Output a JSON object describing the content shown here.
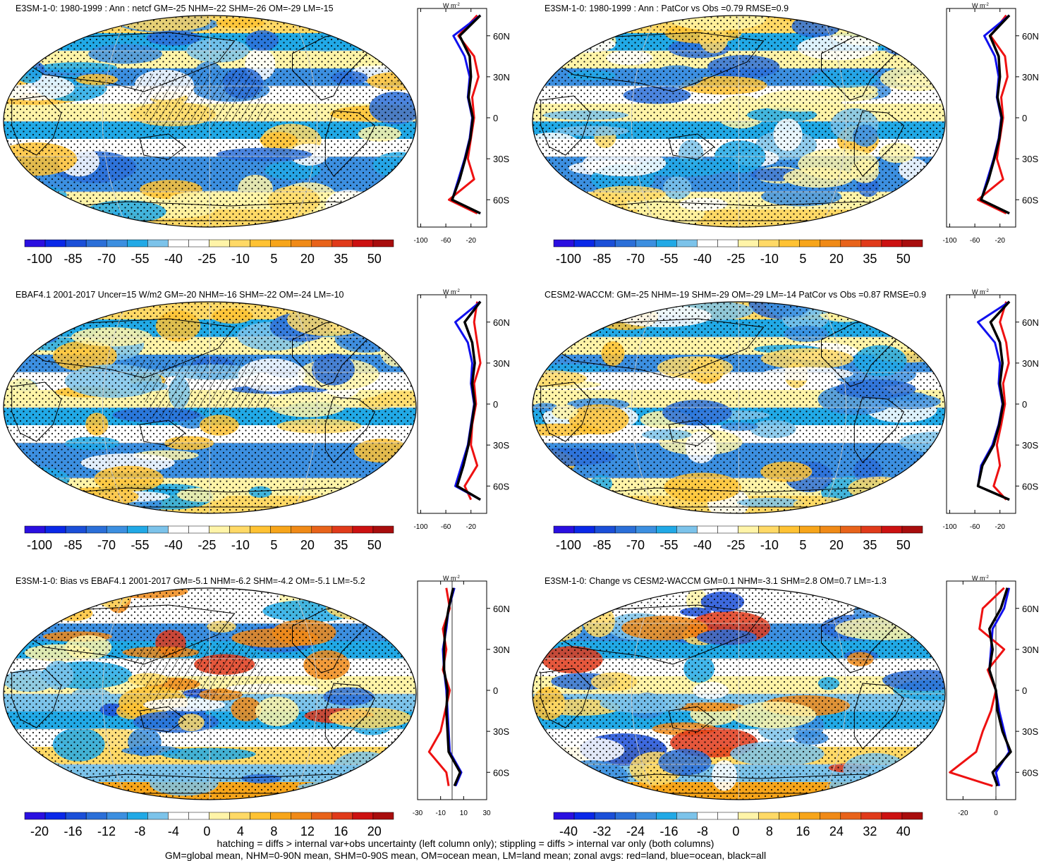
{
  "footer": {
    "line1": "hatching = diffs > internal var+obs uncertainty (left column only); stippling = diffs > internal var only (both columns)",
    "line2": "GM=global mean, NHM=0-90N mean, SHM=0-90S mean, OM=ocean mean, LM=land mean; zonal avgs: red=land, blue=ocean, black=all"
  },
  "profile_unit": "W m",
  "profile_unit_exp": "-2",
  "lat_labels": [
    "60N",
    "30N",
    "0",
    "30S",
    "60S"
  ],
  "chart_data": [
    {
      "type": "heatmap",
      "title": "E3SM-1-0: 1980-1999 : Ann : netcf GM=-25 NHM=-22 SHM=-26 OM=-29 LM=-15",
      "colorbar_ticks": [
        "-100",
        "-85",
        "-70",
        "-55",
        "-40",
        "-25",
        "-10",
        "5",
        "20",
        "35",
        "50"
      ],
      "colorbar_range": [
        -105,
        55
      ],
      "zonal_mean_profile": {
        "xticks": [
          "-100",
          "-60",
          "-20"
        ],
        "xrange": [
          -105,
          5
        ],
        "lat": [
          75,
          60,
          45,
          30,
          15,
          0,
          -15,
          -30,
          -45,
          -60,
          -70
        ],
        "land": [
          -10,
          -40,
          -15,
          -8,
          -18,
          -15,
          -20,
          -25,
          -15,
          -55,
          -10
        ],
        "ocean": [
          -5,
          -48,
          -30,
          -22,
          -25,
          -18,
          -22,
          -30,
          -40,
          -50,
          -5
        ],
        "all": [
          -5,
          -38,
          -22,
          -20,
          -24,
          -17,
          -21,
          -29,
          -38,
          -50,
          -5
        ]
      }
    },
    {
      "type": "heatmap",
      "title": "E3SM-1-0: 1980-1999 : Ann : PatCor vs Obs =0.79 RMSE=0.9",
      "colorbar_ticks": [
        "-100",
        "-85",
        "-70",
        "-55",
        "-40",
        "-25",
        "-10",
        "5",
        "20",
        "35",
        "50"
      ],
      "colorbar_range": [
        -105,
        55
      ],
      "zonal_mean_profile": {
        "xticks": [
          "-100",
          "-60",
          "-20"
        ],
        "xrange": [
          -105,
          5
        ],
        "lat": [
          75,
          60,
          45,
          30,
          15,
          0,
          -15,
          -30,
          -45,
          -60,
          -70
        ],
        "land": [
          -10,
          -35,
          -12,
          -8,
          -18,
          -15,
          -20,
          -25,
          -15,
          -55,
          -10
        ],
        "ocean": [
          -5,
          -45,
          -28,
          -22,
          -25,
          -18,
          -22,
          -30,
          -40,
          -50,
          -5
        ],
        "all": [
          -5,
          -36,
          -22,
          -20,
          -24,
          -17,
          -21,
          -29,
          -38,
          -50,
          -5
        ]
      }
    },
    {
      "type": "heatmap",
      "title": "EBAF4.1 2001-2017 Uncer=15 W/m2 GM=-20 NHM=-16 SHM=-22 OM=-24 LM=-10",
      "colorbar_ticks": [
        "-100",
        "-85",
        "-70",
        "-55",
        "-40",
        "-25",
        "-10",
        "5",
        "20",
        "35",
        "50"
      ],
      "colorbar_range": [
        -105,
        55
      ],
      "zonal_mean_profile": {
        "xticks": [
          "-100",
          "-60",
          "-20"
        ],
        "xrange": [
          -105,
          5
        ],
        "lat": [
          75,
          60,
          45,
          30,
          15,
          0,
          -15,
          -30,
          -45,
          -60,
          -70
        ],
        "land": [
          -10,
          -15,
          -10,
          -5,
          -15,
          -12,
          -18,
          -20,
          -10,
          -30,
          -20
        ],
        "ocean": [
          -5,
          -45,
          -25,
          -18,
          -20,
          -15,
          -20,
          -25,
          -35,
          -45,
          -5
        ],
        "all": [
          -5,
          -30,
          -18,
          -14,
          -18,
          -14,
          -19,
          -24,
          -32,
          -42,
          -5
        ]
      }
    },
    {
      "type": "heatmap",
      "title": "CESM2-WACCM: GM=-25 NHM=-19 SHM=-29 OM=-29 LM=-14 PatCor vs Obs =0.87 RMSE=0.9",
      "colorbar_ticks": [
        "-100",
        "-85",
        "-70",
        "-55",
        "-40",
        "-25",
        "-10",
        "5",
        "20",
        "35",
        "50"
      ],
      "colorbar_range": [
        -105,
        55
      ],
      "zonal_mean_profile": {
        "xticks": [
          "-100",
          "-60",
          "-20"
        ],
        "xrange": [
          -105,
          5
        ],
        "lat": [
          75,
          60,
          45,
          30,
          15,
          0,
          -15,
          -30,
          -45,
          -60,
          -70
        ],
        "land": [
          -10,
          -20,
          -10,
          -6,
          -15,
          -12,
          -18,
          -25,
          -20,
          -30,
          -10
        ],
        "ocean": [
          -5,
          -55,
          -28,
          -20,
          -22,
          -16,
          -22,
          -32,
          -50,
          -55,
          -5
        ],
        "all": [
          -5,
          -35,
          -20,
          -16,
          -20,
          -15,
          -21,
          -30,
          -48,
          -55,
          -5
        ]
      }
    },
    {
      "type": "heatmap",
      "title": "E3SM-1-0: Bias vs EBAF4.1 2001-2017 GM=-5.1 NHM=-6.2 SHM=-4.2 OM=-5.1 LM=-5.2",
      "colorbar_ticks": [
        "-20",
        "-16",
        "-12",
        "-8",
        "-4",
        "0",
        "4",
        "8",
        "12",
        "16",
        "20"
      ],
      "colorbar_range": [
        -22,
        22
      ],
      "zonal_mean_profile": {
        "xticks": [
          "-30",
          "-10",
          "10",
          "30"
        ],
        "xrange": [
          -30,
          30
        ],
        "lat": [
          75,
          60,
          45,
          30,
          15,
          0,
          -15,
          -30,
          -45,
          -60,
          -70
        ],
        "land": [
          -5,
          -2,
          -8,
          -5,
          -8,
          -2,
          -6,
          -10,
          -20,
          -5,
          -3
        ],
        "ocean": [
          2,
          -3,
          -5,
          -8,
          -7,
          -5,
          -4,
          -3,
          -2,
          8,
          3
        ],
        "all": [
          1,
          -3,
          -6,
          -7,
          -7,
          -4,
          -5,
          -4,
          -3,
          7,
          2
        ]
      }
    },
    {
      "type": "heatmap",
      "title": "E3SM-1-0: Change vs CESM2-WACCM GM=0.1 NHM=-3.1 SHM=2.8 OM=0.7 LM=-1.3",
      "colorbar_ticks": [
        "-40",
        "-32",
        "-24",
        "-16",
        "-8",
        "0",
        "8",
        "16",
        "24",
        "32",
        "40"
      ],
      "colorbar_range": [
        -44,
        44
      ],
      "zonal_mean_profile": {
        "xticks": [
          "-20",
          "0"
        ],
        "xrange": [
          -30,
          12
        ],
        "lat": [
          75,
          60,
          45,
          30,
          15,
          0,
          -15,
          -30,
          -45,
          -60,
          -70
        ],
        "land": [
          5,
          -8,
          -10,
          5,
          -5,
          0,
          -3,
          -8,
          -12,
          -28,
          -2
        ],
        "ocean": [
          8,
          5,
          -2,
          -3,
          -4,
          0,
          2,
          5,
          8,
          0,
          2
        ],
        "all": [
          7,
          3,
          -4,
          -2,
          -4,
          0,
          1,
          4,
          9,
          -2,
          1
        ]
      }
    }
  ]
}
